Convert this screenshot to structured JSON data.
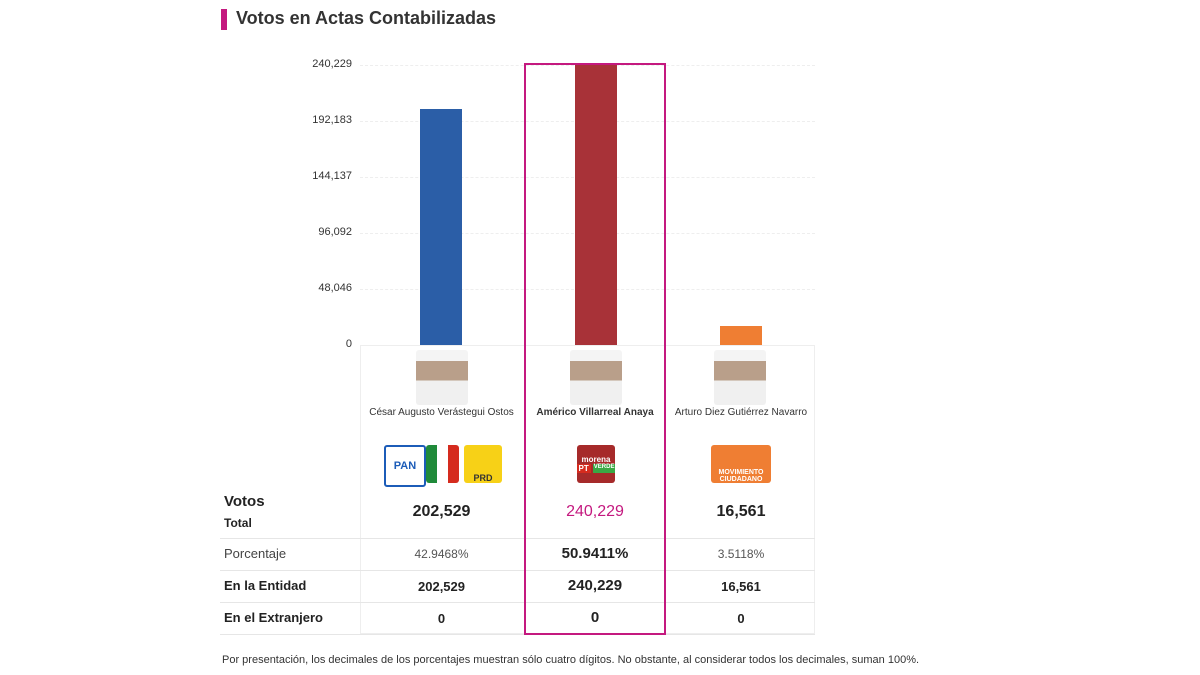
{
  "title": "Votos en Actas Contabilizadas",
  "chart_data": {
    "type": "bar",
    "title": "Votos en Actas Contabilizadas",
    "categories": [
      "César Augusto Verástegui Ostos",
      "Américo Villarreal Anaya",
      "Arturo Diez Gutiérrez Navarro"
    ],
    "values": [
      202529,
      240229,
      16561
    ],
    "colors": [
      "#2b5ea7",
      "#a83238",
      "#ef7e33"
    ],
    "yticks": [
      "0",
      "48,046",
      "96,092",
      "144,137",
      "192,183",
      "240,229"
    ],
    "ytick_values": [
      0,
      48046,
      96092,
      144137,
      192183,
      240229
    ],
    "ylim": [
      0,
      240229
    ],
    "grid": true,
    "highlight": "Américo Villarreal Anaya",
    "highlight_color": "#c4197f"
  },
  "candidates": [
    {
      "name": "César Augusto Verástegui Ostos",
      "logos": [
        "PAN",
        "PRI",
        "PRD"
      ],
      "total": "202,529",
      "pct": "42.9468%",
      "entidad": "202,529",
      "extranjero": "0"
    },
    {
      "name": "Américo Villarreal Anaya",
      "logos": [
        "morena",
        "PT",
        "VERDE"
      ],
      "total": "240,229",
      "pct": "50.9411%",
      "entidad": "240,229",
      "extranjero": "0"
    },
    {
      "name": "Arturo Diez Gutiérrez Navarro",
      "logos": [
        "MOVIMIENTO CIUDADANO"
      ],
      "total": "16,561",
      "pct": "3.5118%",
      "entidad": "16,561",
      "extranjero": "0"
    }
  ],
  "rows": {
    "votos": "Votos",
    "total": "Total",
    "porcentaje": "Porcentaje",
    "entidad": "En la Entidad",
    "extranjero": "En el Extranjero"
  },
  "footnote": "Por presentación, los decimales de los porcentajes muestran sólo cuatro dígitos. No obstante, al considerar todos los decimales, suman 100%."
}
